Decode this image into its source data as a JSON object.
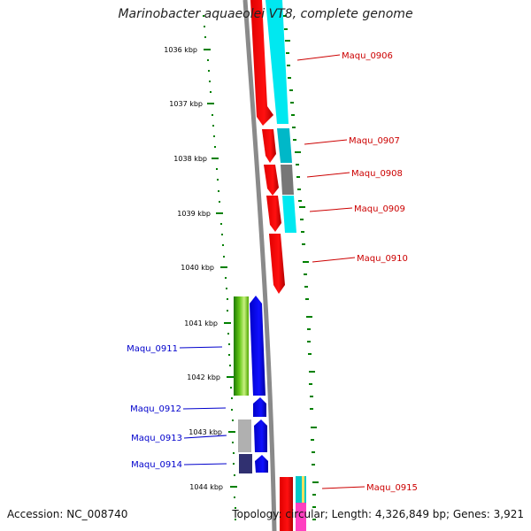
{
  "title": "Marinobacter aquaeolei VT8, complete genome",
  "accession": "Accession: NC_008740",
  "topology": "Topology: circular; Length: 4,326,849 bp; Genes: 3,921",
  "colors": {
    "tick": "#008000",
    "backbone": "#888888",
    "forward_label": "#cc0000",
    "reverse_label": "#0000cc"
  },
  "scale_labels": [
    "1036 kbp",
    "1037 kbp",
    "1038 kbp",
    "1039 kbp",
    "1040 kbp",
    "1041 kbp",
    "1042 kbp",
    "1043 kbp",
    "1044 kbp"
  ],
  "forward_gene_labels": [
    "Maqu_0906",
    "Maqu_0907",
    "Maqu_0908",
    "Maqu_0909",
    "Maqu_0910",
    "Maqu_0915"
  ],
  "reverse_gene_labels": [
    "Maqu_0911",
    "Maqu_0912",
    "Maqu_0913",
    "Maqu_0914"
  ]
}
